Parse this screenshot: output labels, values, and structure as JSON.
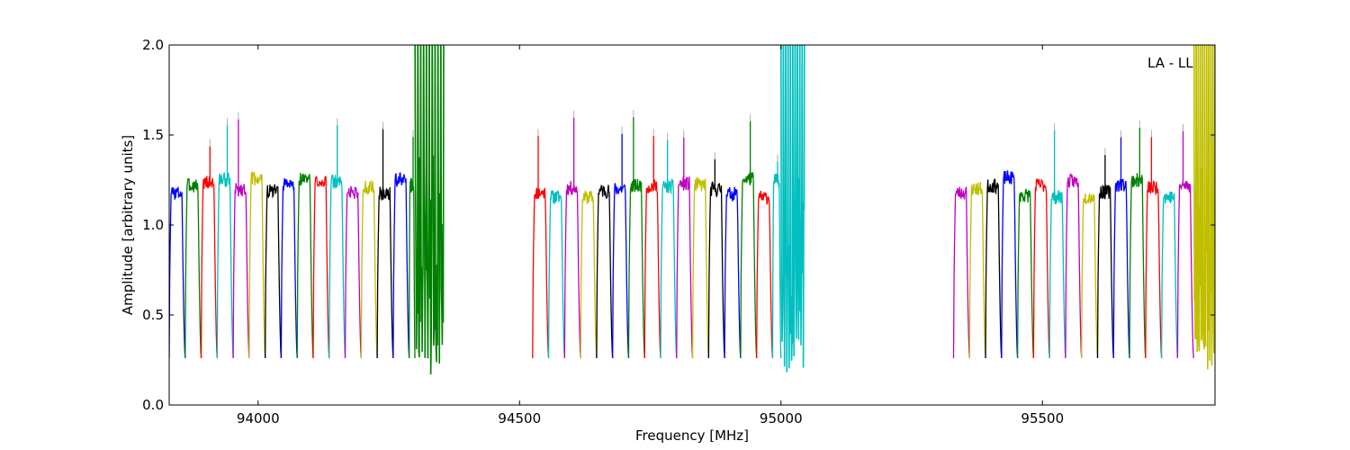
{
  "chart_data": {
    "type": "line",
    "annotation": "LA - LL",
    "xlabel": "Frequency [MHz]",
    "ylabel": "Amplitude [arbitrary units]",
    "xlim": [
      93830,
      95830
    ],
    "ylim": [
      0,
      2.0
    ],
    "xticks": [
      94000,
      94500,
      95000,
      95500
    ],
    "xtick_labels": [
      "94000",
      "94500",
      "95000",
      "95500"
    ],
    "yticks": [
      0.0,
      0.5,
      1.0,
      1.5,
      2.0
    ],
    "ytick_labels": [
      "0.0",
      "0.5",
      "1.0",
      "1.5",
      "2.0"
    ],
    "grid": false,
    "color_cycle": [
      "#0000ff",
      "#008000",
      "#ff0000",
      "#00bfbf",
      "#bf00bf",
      "#bfbf00",
      "#000000"
    ],
    "spike_color": "#b0b0b0",
    "segments": [
      {
        "start": 93830,
        "end": 94355,
        "channel_width": 30.6,
        "first_color": 0,
        "seed": 3,
        "noisy_tail": {
          "from": 94300,
          "color": 1,
          "min": 0.14
        }
      },
      {
        "start": 94525,
        "end": 95045,
        "channel_width": 30.6,
        "first_color": 2,
        "seed": 11,
        "noisy_tail": {
          "from": 95000,
          "color": 3,
          "min": 0.18
        }
      },
      {
        "start": 95330,
        "end": 95830,
        "channel_width": 30.6,
        "first_color": 4,
        "seed": 23,
        "noisy_tail": {
          "from": 95790,
          "color": 5,
          "min": 0.18
        }
      }
    ]
  }
}
